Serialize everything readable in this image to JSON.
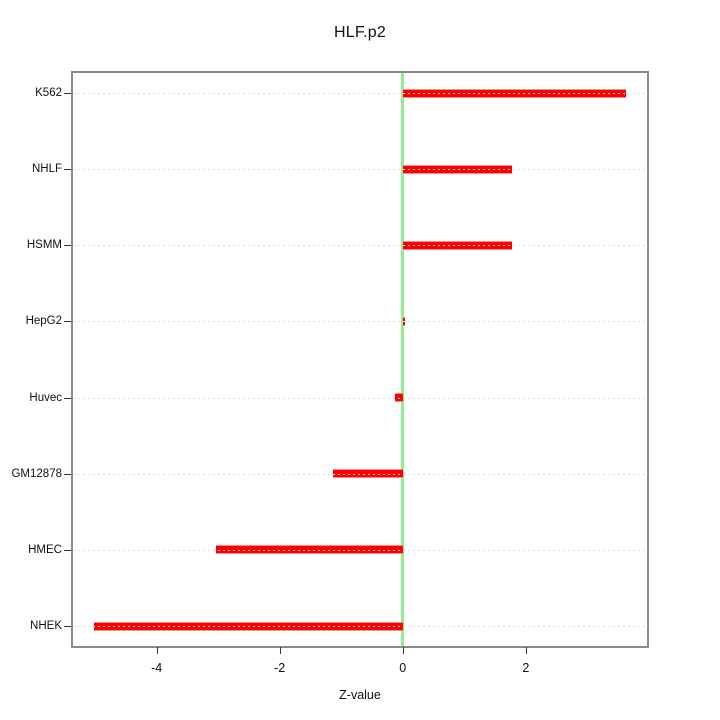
{
  "chart_data": {
    "type": "bar",
    "orientation": "horizontal",
    "title": "HLF.p2",
    "xlabel": "Z-value",
    "ylabel": "",
    "categories": [
      "K562",
      "NHLF",
      "HSMM",
      "HepG2",
      "Huvec",
      "GM12878",
      "HMEC",
      "NHEK"
    ],
    "values": [
      3.63,
      1.78,
      1.78,
      0.03,
      -0.13,
      -1.13,
      -3.03,
      -5.02
    ],
    "x_ticks": [
      -4,
      -2,
      0,
      2
    ],
    "x_tick_labels": [
      "-4",
      "-2",
      "0",
      "2"
    ],
    "xlim": [
      -5.36,
      3.97
    ],
    "zero_line_value": 0,
    "grid": "dotted horizontal line per category, drawn over bars",
    "legend": "none",
    "colors": {
      "bar": "#ff0000",
      "bar_edge": "#ff8a8a",
      "grid_dots": "#dcdcdc",
      "zero_line": "#90ee90",
      "frame": "#8a8a8a",
      "text": "#111111",
      "background": "#ffffff"
    }
  }
}
